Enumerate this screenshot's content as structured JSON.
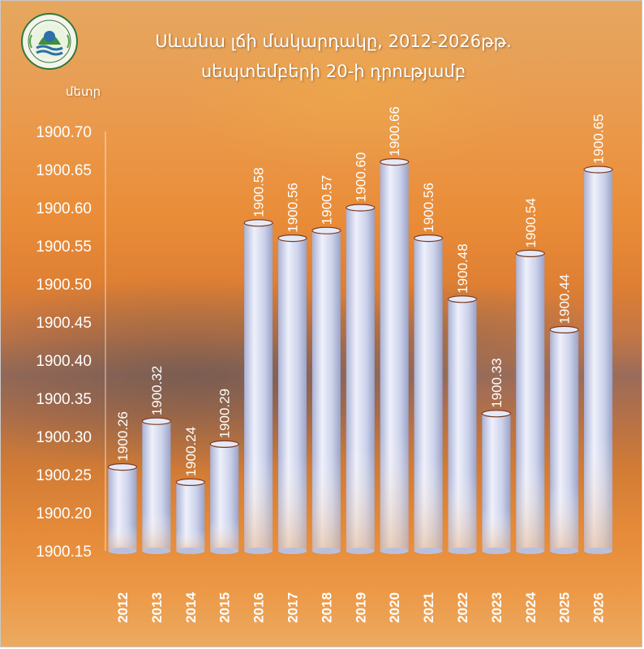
{
  "header": {
    "title_line1": "Սևանա լճի մակարդակը, 2012-2026թթ.",
    "title_line2": "սեպտեմբերի 20-ի դրությամբ",
    "unit": "մետր"
  },
  "chart_data": {
    "type": "bar",
    "title": "Սևանա լճի մակարդակը, 2012-2026թթ. սեպտեմբերի 20-ի դրությամբ",
    "ylabel": "մետր",
    "xlabel": "",
    "categories": [
      "2012",
      "2013",
      "2014",
      "2015",
      "2016",
      "2017",
      "2018",
      "2019",
      "2020",
      "2021",
      "2022",
      "2023",
      "2024",
      "2025",
      "2026"
    ],
    "values": [
      1900.26,
      1900.32,
      1900.24,
      1900.29,
      1900.58,
      1900.56,
      1900.57,
      1900.6,
      1900.66,
      1900.56,
      1900.48,
      1900.33,
      1900.54,
      1900.44,
      1900.65
    ],
    "data_labels": [
      "1900.26",
      "1900.32",
      "1900.24",
      "1900.29",
      "1900.58",
      "1900.56",
      "1900.57",
      "1900.60",
      "1900.66",
      "1900.56",
      "1900.48",
      "1900.33",
      "1900.54",
      "1900.44",
      "1900.65"
    ],
    "ylim": [
      1900.15,
      1900.7
    ],
    "yticks": [
      "1900.15",
      "1900.20",
      "1900.25",
      "1900.30",
      "1900.35",
      "1900.40",
      "1900.45",
      "1900.50",
      "1900.55",
      "1900.60",
      "1900.65",
      "1900.70"
    ],
    "grid": false,
    "legend": "none",
    "bar_color": "#c8cfe8"
  }
}
